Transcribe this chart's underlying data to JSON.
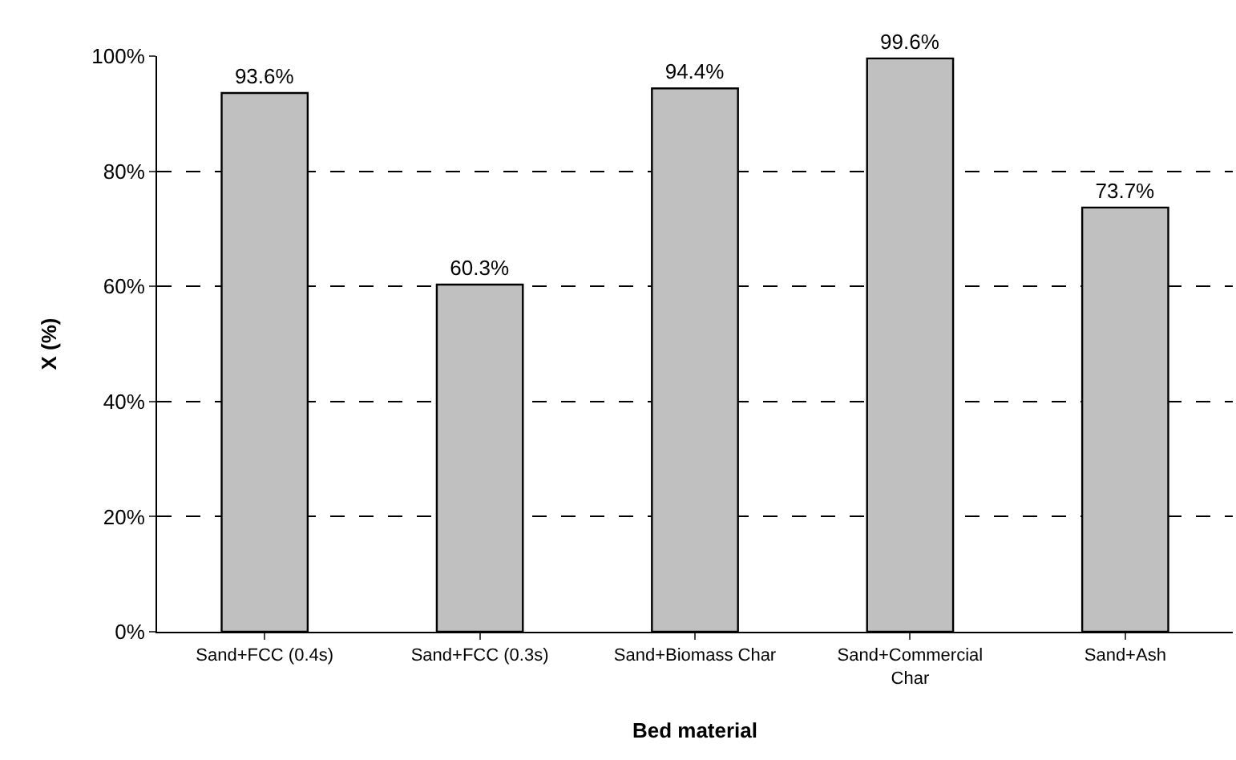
{
  "chart_data": {
    "type": "bar",
    "xlabel": "Bed material",
    "ylabel": "X (%)",
    "categories": [
      "Sand+FCC (0.4s)",
      "Sand+FCC (0.3s)",
      "Sand+Biomass Char",
      "Sand+Commercial Char",
      "Sand+Ash"
    ],
    "values": [
      93.6,
      60.3,
      94.4,
      99.6,
      73.7
    ],
    "value_labels": [
      "93.6%",
      "60.3%",
      "94.4%",
      "99.6%",
      "73.7%"
    ],
    "color": "#c0c0c0",
    "ylim": [
      0,
      100
    ],
    "yticks": [
      {
        "value": 0,
        "label": "0%"
      },
      {
        "value": 20,
        "label": "20%"
      },
      {
        "value": 40,
        "label": "40%"
      },
      {
        "value": 60,
        "label": "60%"
      },
      {
        "value": 80,
        "label": "80%"
      },
      {
        "value": 100,
        "label": "100%"
      }
    ],
    "grid": "y",
    "legend": false
  }
}
